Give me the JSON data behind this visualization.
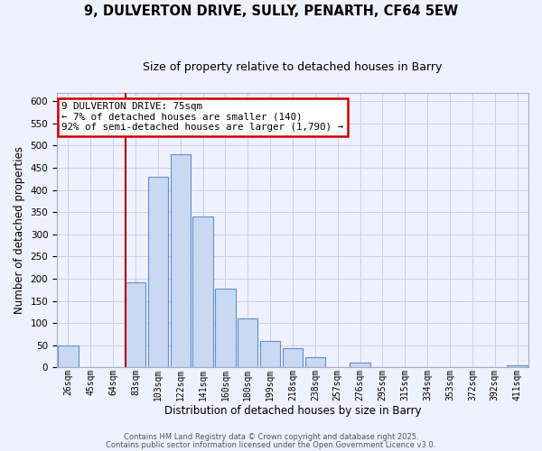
{
  "title": "9, DULVERTON DRIVE, SULLY, PENARTH, CF64 5EW",
  "subtitle": "Size of property relative to detached houses in Barry",
  "xlabel": "Distribution of detached houses by size in Barry",
  "ylabel": "Number of detached properties",
  "bar_labels": [
    "26sqm",
    "45sqm",
    "64sqm",
    "83sqm",
    "103sqm",
    "122sqm",
    "141sqm",
    "160sqm",
    "180sqm",
    "199sqm",
    "218sqm",
    "238sqm",
    "257sqm",
    "276sqm",
    "295sqm",
    "315sqm",
    "334sqm",
    "353sqm",
    "372sqm",
    "392sqm",
    "411sqm"
  ],
  "bar_values": [
    50,
    0,
    0,
    192,
    430,
    480,
    340,
    178,
    110,
    60,
    44,
    24,
    0,
    10,
    0,
    0,
    0,
    0,
    0,
    0,
    5
  ],
  "bar_color": "#c9d9f0",
  "bar_edge_color": "#6090d0",
  "vline_color": "#aa0000",
  "annotation_line1": "9 DULVERTON DRIVE: 75sqm",
  "annotation_line2": "← 7% of detached houses are smaller (140)",
  "annotation_line3": "92% of semi-detached houses are larger (1,790) →",
  "annotation_box_color": "#ffffff",
  "annotation_box_edge": "#cc0000",
  "ylim": [
    0,
    620
  ],
  "yticks": [
    0,
    50,
    100,
    150,
    200,
    250,
    300,
    350,
    400,
    450,
    500,
    550,
    600
  ],
  "footer1": "Contains HM Land Registry data © Crown copyright and database right 2025.",
  "footer2": "Contains public sector information licensed under the Open Government Licence v3.0.",
  "bg_color": "#f0f0ff",
  "plot_bg_color": "#f0f0ff",
  "grid_color": "#c8d0e8",
  "title_fontsize": 10.5,
  "subtitle_fontsize": 9,
  "tick_fontsize": 7,
  "label_fontsize": 8.5
}
